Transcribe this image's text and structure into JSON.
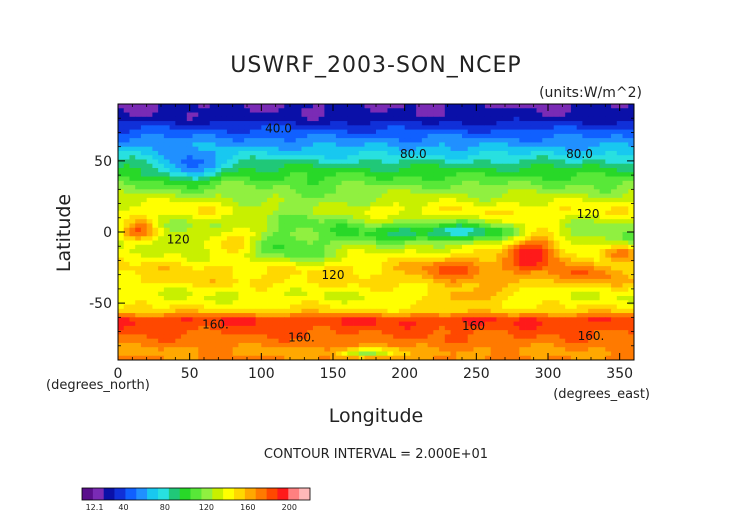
{
  "chart_data": {
    "type": "heatmap",
    "title": "USWRF_2003-SON_NCEP",
    "units_label": "(units:W/m^2)",
    "xlabel": "Longitude",
    "ylabel": "Latitude",
    "x_unit_note": "(degrees_east)",
    "y_unit_note": "(degrees_north)",
    "xlim": [
      0,
      360
    ],
    "ylim": [
      -90,
      90
    ],
    "xticks": [
      0,
      50,
      100,
      150,
      200,
      250,
      300,
      350
    ],
    "yticks": [
      -50,
      0,
      50
    ],
    "footer": "CONTOUR INTERVAL = 2.000E+01",
    "contour_interval": 20,
    "contour_labels": [
      {
        "text": "40.0",
        "lon": 112,
        "lat": 70
      },
      {
        "text": "80.0",
        "lon": 206,
        "lat": 52
      },
      {
        "text": "80.0",
        "lon": 322,
        "lat": 52
      },
      {
        "text": "120",
        "lon": 328,
        "lat": 10
      },
      {
        "text": "120",
        "lon": 42,
        "lat": -8
      },
      {
        "text": "120",
        "lon": 150,
        "lat": -33
      },
      {
        "text": "160.",
        "lon": 68,
        "lat": -68
      },
      {
        "text": "160.",
        "lon": 128,
        "lat": -77
      },
      {
        "text": "160",
        "lon": 248,
        "lat": -69
      },
      {
        "text": "160.",
        "lon": 330,
        "lat": -76
      }
    ],
    "zonal_profile": [
      {
        "lat": 90,
        "value": 20
      },
      {
        "lat": 80,
        "value": 25
      },
      {
        "lat": 72,
        "value": 42
      },
      {
        "lat": 65,
        "value": 55
      },
      {
        "lat": 55,
        "value": 72
      },
      {
        "lat": 45,
        "value": 95
      },
      {
        "lat": 35,
        "value": 112
      },
      {
        "lat": 25,
        "value": 128
      },
      {
        "lat": 15,
        "value": 145
      },
      {
        "lat": 5,
        "value": 125
      },
      {
        "lat": -5,
        "value": 120
      },
      {
        "lat": -15,
        "value": 135
      },
      {
        "lat": -25,
        "value": 150
      },
      {
        "lat": -35,
        "value": 150
      },
      {
        "lat": -45,
        "value": 135
      },
      {
        "lat": -55,
        "value": 150
      },
      {
        "lat": -62,
        "value": 190
      },
      {
        "lat": -70,
        "value": 180
      },
      {
        "lat": -76,
        "value": 175
      },
      {
        "lat": -84,
        "value": 165
      },
      {
        "lat": -90,
        "value": 170
      }
    ],
    "features": [
      {
        "lon": 290,
        "lat": -12,
        "dlon": 22,
        "dlat": 16,
        "amp": 60
      },
      {
        "lon": 15,
        "lat": 0,
        "dlon": 14,
        "dlat": 9,
        "amp": 50
      },
      {
        "lon": 80,
        "lat": -5,
        "dlon": 20,
        "dlat": 8,
        "amp": 35
      },
      {
        "lon": 235,
        "lat": -25,
        "dlon": 30,
        "dlat": 10,
        "amp": 30
      },
      {
        "lon": 245,
        "lat": -45,
        "dlon": 25,
        "dlat": 6,
        "amp": 30
      },
      {
        "lon": 330,
        "lat": -30,
        "dlon": 20,
        "dlat": 8,
        "amp": 25
      },
      {
        "lon": 350,
        "lat": -15,
        "dlon": 12,
        "dlat": 6,
        "amp": 40
      },
      {
        "lon": 230,
        "lat": 0,
        "dlon": 60,
        "dlat": 6,
        "amp": -40
      },
      {
        "lon": 50,
        "lat": 45,
        "dlon": 20,
        "dlat": 10,
        "amp": -45
      },
      {
        "lon": 130,
        "lat": 15,
        "dlon": 40,
        "dlat": 14,
        "amp": -20
      },
      {
        "lon": 120,
        "lat": -15,
        "dlon": 30,
        "dlat": 10,
        "amp": -25
      },
      {
        "lon": 175,
        "lat": -85,
        "dlon": 20,
        "dlat": 3,
        "amp": -50
      }
    ]
  },
  "colorbar": {
    "labels": [
      {
        "text": "12.1",
        "value": 12.1
      },
      {
        "text": "40",
        "value": 40
      },
      {
        "text": "80",
        "value": 80
      },
      {
        "text": "120",
        "value": 120
      },
      {
        "text": "160",
        "value": 160
      },
      {
        "text": "200",
        "value": 200
      }
    ],
    "vmin": 0,
    "vmax": 220,
    "colors": [
      "#5a0f8c",
      "#7a2bb5",
      "#0a10a8",
      "#1030d8",
      "#1060ff",
      "#2090ff",
      "#18c8f0",
      "#28e0e0",
      "#20c878",
      "#28d828",
      "#58e838",
      "#90f040",
      "#c8f000",
      "#ffff00",
      "#ffd800",
      "#ffa800",
      "#ff7a00",
      "#ff4800",
      "#ff1a1a",
      "#ff8080",
      "#ffb8b8"
    ]
  }
}
